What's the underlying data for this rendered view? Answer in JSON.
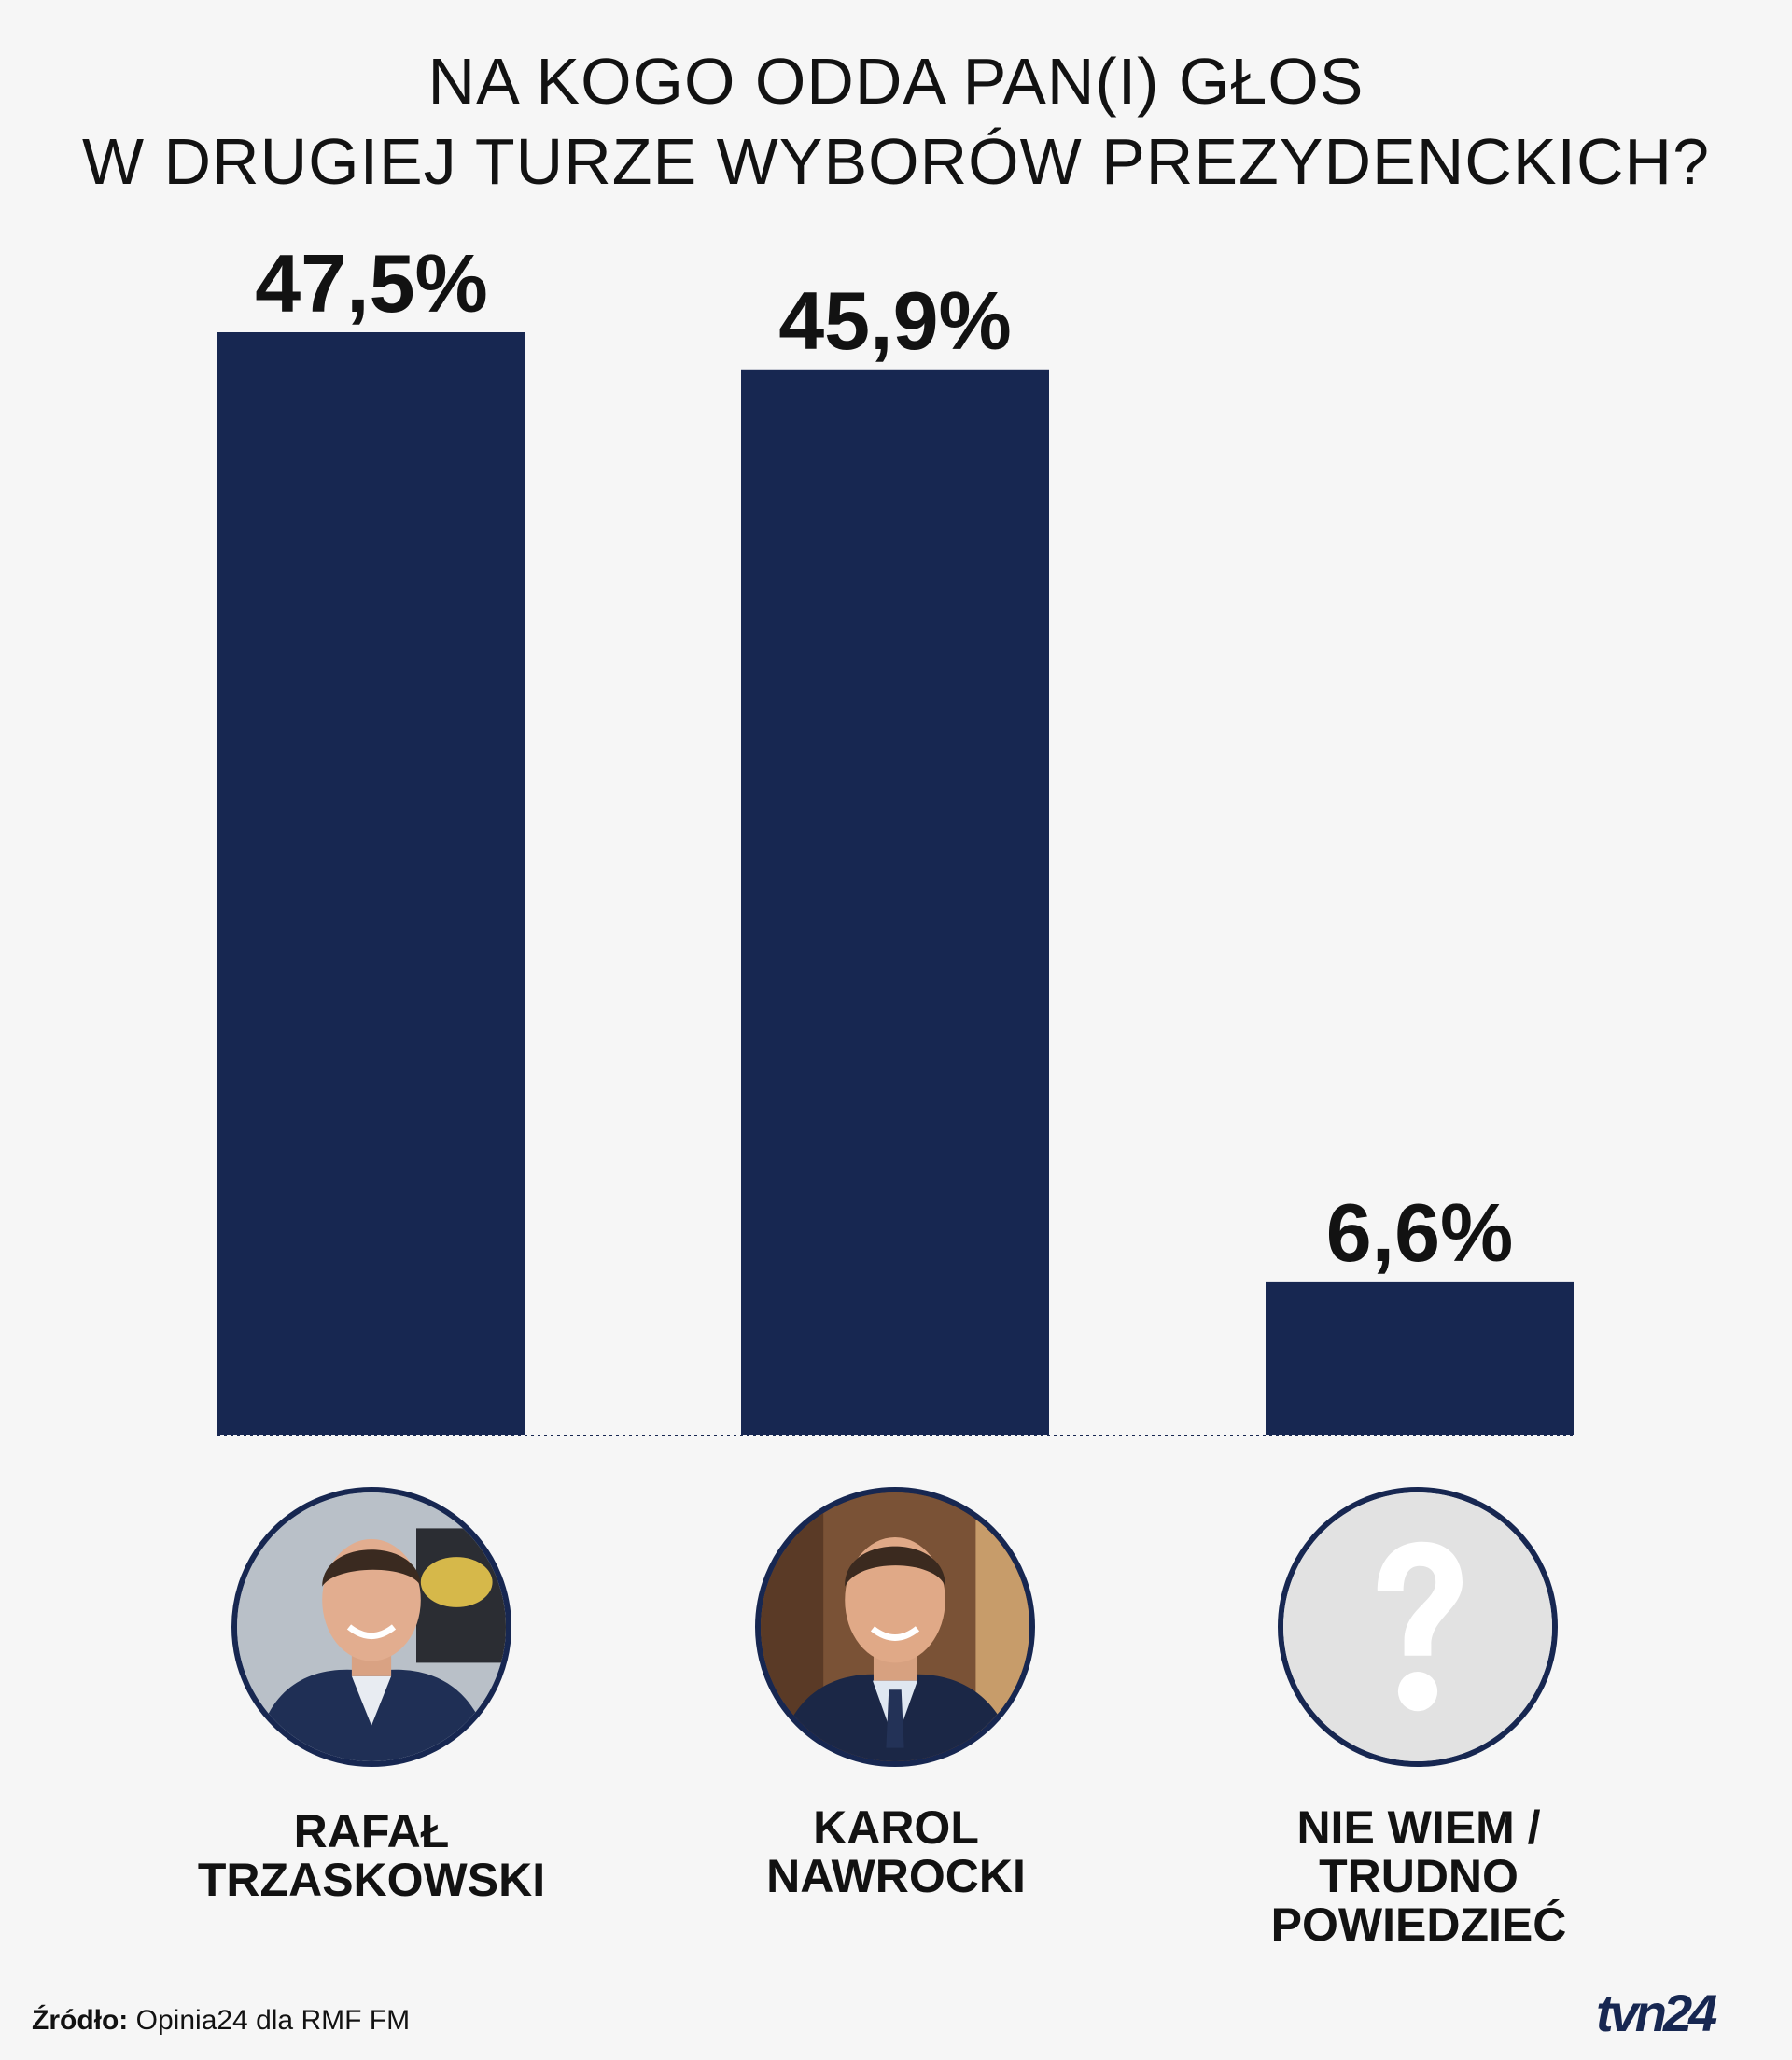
{
  "title": {
    "line1": "NA KOGO ODDA PAN(I) GŁOS",
    "line2": "W DRUGIEJ TURZE WYBORÓW PREZYDENCKICH?"
  },
  "chart_data": {
    "type": "bar",
    "title": "NA KOGO ODDA PAN(I) GŁOS W DRUGIEJ TURZE WYBORÓW PREZYDENCKICH?",
    "categories": [
      "RAFAŁ TRZASKOWSKI",
      "KAROL NAWROCKI",
      "NIE WIEM / TRUDNO POWIEDZIEĆ"
    ],
    "values": [
      47.5,
      45.9,
      6.6
    ],
    "value_labels": [
      "47,5%",
      "45,9%",
      "6,6%"
    ],
    "ylim": [
      0,
      47.5
    ],
    "grid": false,
    "bar_color": "#172751"
  },
  "candidates": [
    {
      "label_lines": [
        "RAFAŁ",
        "TRZASKOWSKI"
      ],
      "icon": "portrait-photo"
    },
    {
      "label_lines": [
        "KAROL",
        "NAWROCKI"
      ],
      "icon": "portrait-photo"
    },
    {
      "label_lines": [
        "NIE WIEM /",
        "TRUDNO",
        "POWIEDZIEĆ"
      ],
      "icon": "question-mark-icon"
    }
  ],
  "footer": {
    "source_label": "Źródło:",
    "source_text": "Opinia24 dla RMF FM",
    "logo_text": "tvn24"
  },
  "colors": {
    "background": "#f6f6f6",
    "bar": "#172751",
    "text": "#121212"
  }
}
